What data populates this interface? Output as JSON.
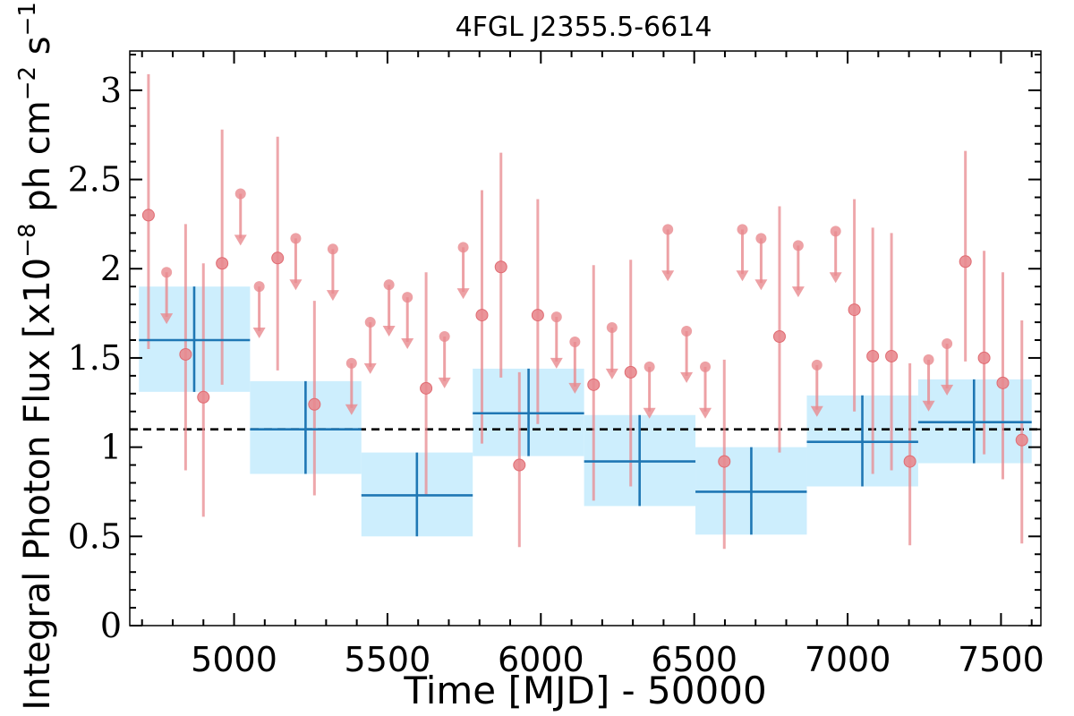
{
  "chart_data": {
    "type": "scatter",
    "title": "4FGL J2355.5-6614",
    "xlabel": "Time [MJD] - 50000",
    "ylabel": "Integral Photon Flux [x10",
    "ylabel_exp1": "−8",
    "ylabel_mid": " ph cm",
    "ylabel_exp2": "−2",
    "ylabel_s": " s",
    "ylabel_exp3": "−1",
    "ylabel_end": "]",
    "xlim": [
      4660,
      7630
    ],
    "ylim": [
      0,
      3.22
    ],
    "xticks": [
      5000,
      5500,
      6000,
      6500,
      7000,
      7500
    ],
    "xtick_labels": [
      "5000",
      "5500",
      "6000",
      "6500",
      "7000",
      "7500"
    ],
    "yticks": [
      0,
      0.5,
      1,
      1.5,
      2,
      2.5,
      3
    ],
    "ytick_labels": [
      "0",
      "0.5",
      "1",
      "1.5",
      "2",
      "2.5",
      "3"
    ],
    "reference_line": 1.1,
    "colors": {
      "short_bins": "#e88a8f",
      "long_bins": "#1f77b4",
      "long_bins_band": "#cdeefd",
      "reference": "#000000"
    },
    "long_bins": [
      {
        "x": 4870,
        "xlo": 4690,
        "xhi": 5052,
        "y": 1.6,
        "ylo": 1.31,
        "yhi": 1.9
      },
      {
        "x": 5233,
        "xlo": 5052,
        "xhi": 5415,
        "y": 1.1,
        "ylo": 0.85,
        "yhi": 1.37
      },
      {
        "x": 5596,
        "xlo": 5415,
        "xhi": 5778,
        "y": 0.73,
        "ylo": 0.5,
        "yhi": 0.97
      },
      {
        "x": 5960,
        "xlo": 5778,
        "xhi": 6141,
        "y": 1.19,
        "ylo": 0.95,
        "yhi": 1.44
      },
      {
        "x": 6322,
        "xlo": 6141,
        "xhi": 6504,
        "y": 0.92,
        "ylo": 0.67,
        "yhi": 1.18
      },
      {
        "x": 6686,
        "xlo": 6504,
        "xhi": 6867,
        "y": 0.75,
        "ylo": 0.51,
        "yhi": 1.0
      },
      {
        "x": 7048,
        "xlo": 6867,
        "xhi": 7230,
        "y": 1.03,
        "ylo": 0.78,
        "yhi": 1.29
      },
      {
        "x": 7412,
        "xlo": 7230,
        "xhi": 7600,
        "y": 1.14,
        "ylo": 0.91,
        "yhi": 1.38
      }
    ],
    "short_bins_detections": [
      {
        "x": 4721,
        "y": 2.3,
        "ylo": 1.55,
        "yhi": 3.09
      },
      {
        "x": 4842,
        "y": 1.52,
        "ylo": 0.87,
        "yhi": 2.25
      },
      {
        "x": 4900,
        "y": 1.28,
        "ylo": 0.61,
        "yhi": 2.03
      },
      {
        "x": 4961,
        "y": 2.03,
        "ylo": 1.35,
        "yhi": 2.78
      },
      {
        "x": 5142,
        "y": 2.06,
        "ylo": 1.43,
        "yhi": 2.74
      },
      {
        "x": 5262,
        "y": 1.24,
        "ylo": 0.73,
        "yhi": 1.82
      },
      {
        "x": 5626,
        "y": 1.33,
        "ylo": 0.73,
        "yhi": 1.98
      },
      {
        "x": 5808,
        "y": 1.74,
        "ylo": 1.02,
        "yhi": 2.44
      },
      {
        "x": 5870,
        "y": 2.01,
        "ylo": 1.39,
        "yhi": 2.65
      },
      {
        "x": 5930,
        "y": 0.9,
        "ylo": 0.44,
        "yhi": 1.42
      },
      {
        "x": 5990,
        "y": 1.74,
        "ylo": 1.13,
        "yhi": 2.39
      },
      {
        "x": 6172,
        "y": 1.35,
        "ylo": 0.7,
        "yhi": 2.02
      },
      {
        "x": 6293,
        "y": 1.42,
        "ylo": 0.78,
        "yhi": 2.05
      },
      {
        "x": 6598,
        "y": 0.92,
        "ylo": 0.43,
        "yhi": 1.49
      },
      {
        "x": 6778,
        "y": 1.62,
        "ylo": 0.97,
        "yhi": 2.35
      },
      {
        "x": 7022,
        "y": 1.77,
        "ylo": 1.2,
        "yhi": 2.39
      },
      {
        "x": 7082,
        "y": 1.51,
        "ylo": 0.85,
        "yhi": 2.23
      },
      {
        "x": 7143,
        "y": 1.51,
        "ylo": 0.87,
        "yhi": 2.2
      },
      {
        "x": 7203,
        "y": 0.92,
        "ylo": 0.45,
        "yhi": 1.47
      },
      {
        "x": 7384,
        "y": 2.04,
        "ylo": 1.48,
        "yhi": 2.66
      },
      {
        "x": 7445,
        "y": 1.5,
        "ylo": 0.96,
        "yhi": 2.1
      },
      {
        "x": 7506,
        "y": 1.36,
        "ylo": 0.82,
        "yhi": 1.98
      },
      {
        "x": 7568,
        "y": 1.04,
        "ylo": 0.46,
        "yhi": 1.71
      }
    ],
    "short_bins_upper_limits": [
      {
        "x": 4780,
        "y": 1.98
      },
      {
        "x": 5021,
        "y": 2.42
      },
      {
        "x": 5082,
        "y": 1.9
      },
      {
        "x": 5201,
        "y": 2.17
      },
      {
        "x": 5322,
        "y": 2.11
      },
      {
        "x": 5383,
        "y": 1.47
      },
      {
        "x": 5444,
        "y": 1.7
      },
      {
        "x": 5505,
        "y": 1.91
      },
      {
        "x": 5565,
        "y": 1.84
      },
      {
        "x": 5686,
        "y": 1.62
      },
      {
        "x": 5747,
        "y": 2.12
      },
      {
        "x": 6051,
        "y": 1.73
      },
      {
        "x": 6111,
        "y": 1.59
      },
      {
        "x": 6232,
        "y": 1.67
      },
      {
        "x": 6354,
        "y": 1.45
      },
      {
        "x": 6414,
        "y": 2.22
      },
      {
        "x": 6475,
        "y": 1.65
      },
      {
        "x": 6536,
        "y": 1.45
      },
      {
        "x": 6657,
        "y": 2.22
      },
      {
        "x": 6718,
        "y": 2.17
      },
      {
        "x": 6839,
        "y": 2.13
      },
      {
        "x": 6900,
        "y": 1.46
      },
      {
        "x": 6961,
        "y": 2.21
      },
      {
        "x": 7264,
        "y": 1.49
      },
      {
        "x": 7324,
        "y": 1.58
      }
    ]
  }
}
